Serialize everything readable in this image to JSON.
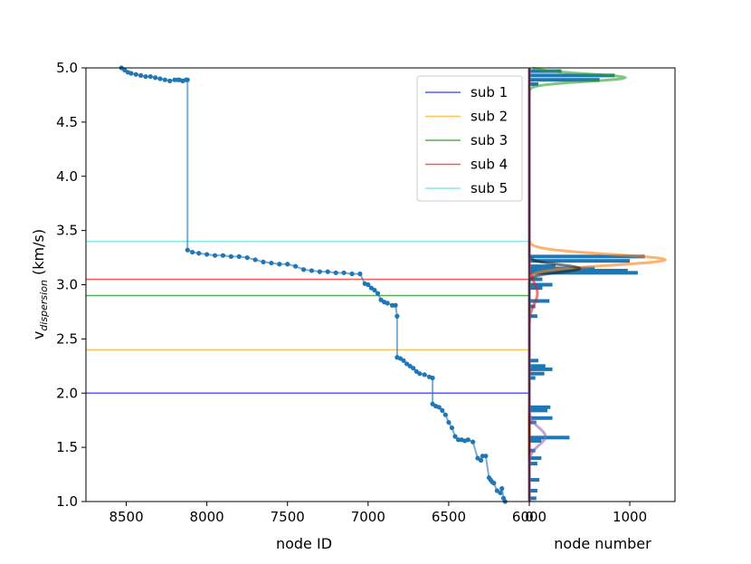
{
  "chart_data": [
    {
      "type": "line",
      "xlabel": "node ID",
      "ylabel_main": "v",
      "ylabel_sub": "dispersion",
      "ylabel_unit": " (km/s)",
      "xlim": [
        8750,
        6000
      ],
      "ylim": [
        1.0,
        5.0
      ],
      "xticks": [
        8500,
        8000,
        7500,
        7000,
        6500,
        6000
      ],
      "yticks": [
        1.0,
        1.5,
        2.0,
        2.5,
        3.0,
        3.5,
        4.0,
        4.5,
        5.0
      ],
      "ytick_labels": [
        "1.0",
        "1.5",
        "2.0",
        "2.5",
        "3.0",
        "3.5",
        "4.0",
        "4.5",
        "5.0"
      ],
      "series_color": "#1f77b4",
      "series": [
        {
          "x": [
            8530,
            8510,
            8490,
            8470,
            8440,
            8410,
            8380,
            8350,
            8320,
            8290,
            8260,
            8230,
            8200,
            8180,
            8170,
            8150,
            8130,
            8120,
            8120,
            8090,
            8050,
            8000,
            7950,
            7900,
            7850,
            7800,
            7750,
            7700,
            7650,
            7600,
            7550,
            7500,
            7450,
            7400,
            7350,
            7300,
            7250,
            7200,
            7150,
            7100,
            7050,
            7020,
            7000,
            6980,
            6960,
            6940,
            6920,
            6900,
            6880,
            6850,
            6830,
            6820,
            6820,
            6800,
            6780,
            6760,
            6740,
            6720,
            6700,
            6680,
            6650,
            6620,
            6600,
            6600,
            6580,
            6560,
            6540,
            6520,
            6500,
            6480,
            6460,
            6440,
            6420,
            6400,
            6380,
            6350,
            6320,
            6300,
            6290,
            6270,
            6250,
            6240,
            6230,
            6220,
            6200,
            6180,
            6170,
            6160,
            6150
          ],
          "y": [
            5.0,
            4.98,
            4.96,
            4.95,
            4.94,
            4.93,
            4.92,
            4.92,
            4.91,
            4.9,
            4.89,
            4.88,
            4.89,
            4.89,
            4.89,
            4.88,
            4.89,
            4.89,
            3.32,
            3.3,
            3.29,
            3.28,
            3.27,
            3.27,
            3.26,
            3.26,
            3.25,
            3.23,
            3.21,
            3.2,
            3.19,
            3.19,
            3.17,
            3.14,
            3.13,
            3.12,
            3.12,
            3.11,
            3.11,
            3.1,
            3.1,
            3.01,
            3.0,
            2.97,
            2.95,
            2.92,
            2.86,
            2.84,
            2.83,
            2.81,
            2.81,
            2.71,
            2.33,
            2.32,
            2.3,
            2.27,
            2.25,
            2.23,
            2.2,
            2.18,
            2.17,
            2.15,
            2.14,
            1.9,
            1.88,
            1.87,
            1.84,
            1.8,
            1.73,
            1.68,
            1.6,
            1.57,
            1.57,
            1.56,
            1.57,
            1.55,
            1.4,
            1.38,
            1.42,
            1.42,
            1.22,
            1.2,
            1.18,
            1.17,
            1.1,
            1.08,
            1.12,
            1.03,
            1.0
          ]
        }
      ],
      "hlines": [
        {
          "name": "sub 1",
          "y": 2.0,
          "color": "#0000ff"
        },
        {
          "name": "sub 2",
          "y": 2.4,
          "color": "#ffa500"
        },
        {
          "name": "sub 3",
          "y": 2.9,
          "color": "#008000"
        },
        {
          "name": "sub 4",
          "y": 3.05,
          "color": "#ff0000"
        },
        {
          "name": "sub 5",
          "y": 3.4,
          "color": "#40e0d0"
        }
      ],
      "legend": {
        "location": "top-right",
        "entries": [
          "sub 1",
          "sub 2",
          "sub 3",
          "sub 4",
          "sub 5"
        ]
      }
    },
    {
      "type": "bar",
      "orientation": "horizontal",
      "xlabel": "node number",
      "xlim": [
        0,
        1450
      ],
      "ylim": [
        1.0,
        5.0
      ],
      "xticks": [
        0,
        1000
      ],
      "bar_color": "#1f77b4",
      "bars": [
        {
          "y": 4.97,
          "value": 320
        },
        {
          "y": 4.93,
          "value": 850
        },
        {
          "y": 4.89,
          "value": 700
        },
        {
          "y": 4.85,
          "value": 90
        },
        {
          "y": 3.26,
          "value": 1150
        },
        {
          "y": 3.22,
          "value": 1000
        },
        {
          "y": 3.17,
          "value": 260
        },
        {
          "y": 3.15,
          "value": 650
        },
        {
          "y": 3.13,
          "value": 980
        },
        {
          "y": 3.11,
          "value": 1080
        },
        {
          "y": 3.05,
          "value": 130
        },
        {
          "y": 3.0,
          "value": 230
        },
        {
          "y": 2.97,
          "value": 130
        },
        {
          "y": 2.85,
          "value": 200
        },
        {
          "y": 2.8,
          "value": 60
        },
        {
          "y": 2.71,
          "value": 80
        },
        {
          "y": 2.3,
          "value": 90
        },
        {
          "y": 2.25,
          "value": 160
        },
        {
          "y": 2.22,
          "value": 230
        },
        {
          "y": 2.18,
          "value": 150
        },
        {
          "y": 2.14,
          "value": 60
        },
        {
          "y": 1.87,
          "value": 210
        },
        {
          "y": 1.84,
          "value": 180
        },
        {
          "y": 1.77,
          "value": 230
        },
        {
          "y": 1.73,
          "value": 70
        },
        {
          "y": 1.59,
          "value": 400
        },
        {
          "y": 1.56,
          "value": 120
        },
        {
          "y": 1.47,
          "value": 60
        },
        {
          "y": 1.4,
          "value": 120
        },
        {
          "y": 1.35,
          "value": 80
        },
        {
          "y": 1.2,
          "value": 100
        },
        {
          "y": 1.1,
          "value": 80
        },
        {
          "y": 1.03,
          "value": 70
        }
      ],
      "curves": [
        {
          "color": "#2ca02c",
          "center": 4.91,
          "sigma": 0.035,
          "peak": 950
        },
        {
          "color": "#ff7f0e",
          "center": 3.23,
          "sigma": 0.05,
          "peak": 1350
        },
        {
          "color": "#222222",
          "center": 3.15,
          "sigma": 0.035,
          "peak": 500
        },
        {
          "color": "#d62728",
          "center": 2.92,
          "sigma": 0.1,
          "peak": 80
        },
        {
          "color": "#9467bd",
          "center": 1.6,
          "sigma": 0.08,
          "peak": 160
        }
      ]
    }
  ]
}
